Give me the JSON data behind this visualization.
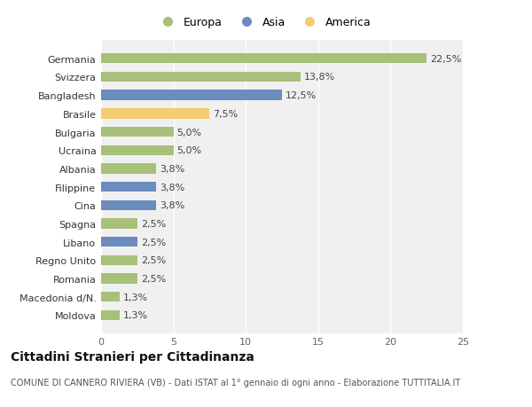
{
  "categories": [
    "Moldova",
    "Macedonia d/N.",
    "Romania",
    "Regno Unito",
    "Libano",
    "Spagna",
    "Cina",
    "Filippine",
    "Albania",
    "Ucraina",
    "Bulgaria",
    "Brasile",
    "Bangladesh",
    "Svizzera",
    "Germania"
  ],
  "values": [
    1.3,
    1.3,
    2.5,
    2.5,
    2.5,
    2.5,
    3.8,
    3.8,
    3.8,
    5.0,
    5.0,
    7.5,
    12.5,
    13.8,
    22.5
  ],
  "labels": [
    "1,3%",
    "1,3%",
    "2,5%",
    "2,5%",
    "2,5%",
    "2,5%",
    "3,8%",
    "3,8%",
    "3,8%",
    "5,0%",
    "5,0%",
    "7,5%",
    "12,5%",
    "13,8%",
    "22,5%"
  ],
  "continents": [
    "Europa",
    "Europa",
    "Europa",
    "Europa",
    "Asia",
    "Europa",
    "Asia",
    "Asia",
    "Europa",
    "Europa",
    "Europa",
    "America",
    "Asia",
    "Europa",
    "Europa"
  ],
  "colors": {
    "Europa": "#a8c07a",
    "Asia": "#6b8cbe",
    "America": "#f5cc6f"
  },
  "legend_order": [
    "Europa",
    "Asia",
    "America"
  ],
  "xlim": [
    0,
    25
  ],
  "xticks": [
    0,
    5,
    10,
    15,
    20,
    25
  ],
  "title": "Cittadini Stranieri per Cittadinanza",
  "subtitle": "COMUNE DI CANNERO RIVIERA (VB) - Dati ISTAT al 1° gennaio di ogni anno - Elaborazione TUTTITALIA.IT",
  "background_color": "#ffffff",
  "plot_bg_color": "#f0f0f0",
  "grid_color": "#ffffff",
  "bar_height": 0.55,
  "label_fontsize": 8,
  "tick_fontsize": 8,
  "title_fontsize": 10,
  "subtitle_fontsize": 7
}
